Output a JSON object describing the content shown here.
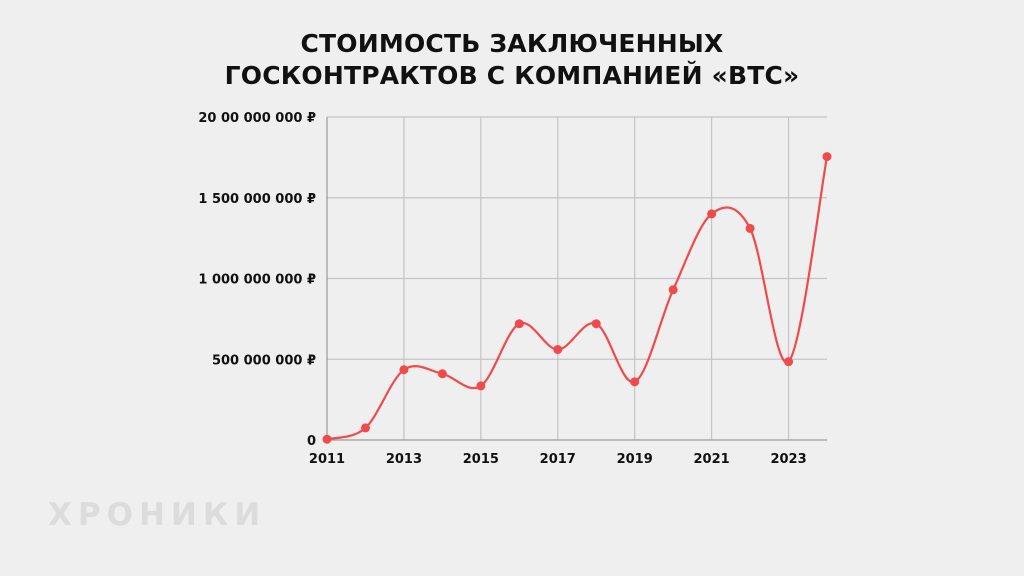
{
  "title_lines": [
    "СТОИМОСТЬ ЗАКЛЮЧЕННЫХ",
    "ГОСКОНТРАКТОВ С КОМПАНИЕЙ «ВТС»"
  ],
  "watermark": "ХРОНИКИ",
  "colors": {
    "background": "#efefef",
    "line": "#f04a4a",
    "grid": "#c4c4c4",
    "text": "#111111",
    "watermark": "#dcdcdc"
  },
  "chart_data": {
    "type": "line",
    "title": "СТОИМОСТЬ ЗАКЛЮЧЕННЫХ ГОСКОНТРАКТОВ С КОМПАНИЕЙ «ВТС»",
    "xlabel": "",
    "ylabel": "",
    "x": [
      2011,
      2012,
      2013,
      2014,
      2015,
      2016,
      2017,
      2018,
      2019,
      2020,
      2021,
      2022,
      2023,
      2024
    ],
    "series": [
      {
        "values": [
          5000000,
          75000000,
          435000000,
          410000000,
          335000000,
          720000000,
          560000000,
          720000000,
          360000000,
          930000000,
          1400000000,
          1310000000,
          485000000,
          1755000000
        ]
      }
    ],
    "ylim": [
      0,
      2000000000
    ],
    "yticks": [
      0,
      500000000,
      1000000000,
      1500000000,
      2000000000
    ],
    "ytick_labels": [
      "0",
      "500 000 000 ₽",
      "1 000 000 000 ₽",
      "1 500 000 000 ₽",
      "20 00 000 000 ₽"
    ],
    "xticks": [
      2011,
      2013,
      2015,
      2017,
      2019,
      2021,
      2023
    ],
    "xtick_labels": [
      "2011",
      "2013",
      "2015",
      "2017",
      "2019",
      "2021",
      "2023"
    ],
    "xlim": [
      2011,
      2024
    ],
    "grid": true,
    "legend": "none"
  }
}
